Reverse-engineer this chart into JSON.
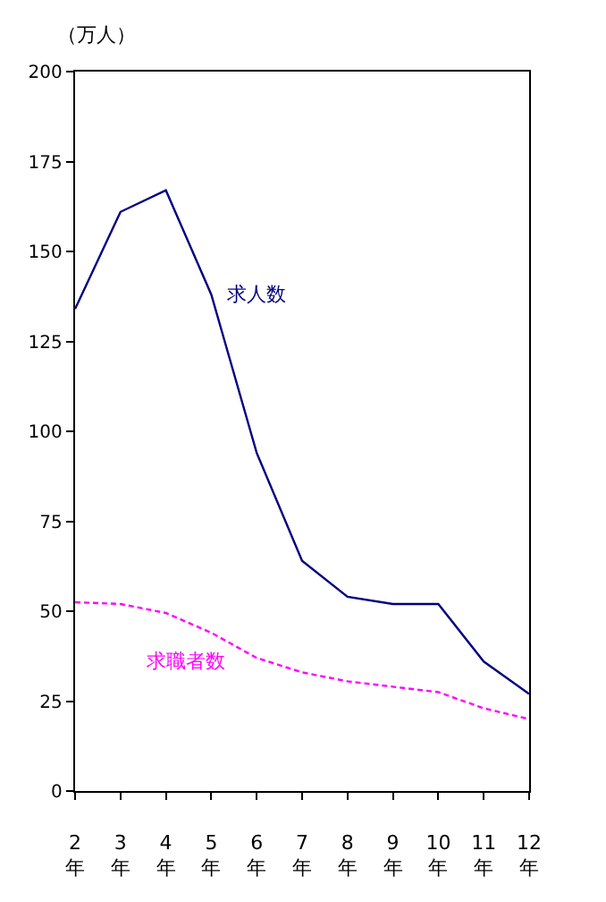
{
  "chart_data": {
    "type": "line",
    "ylabel": "（万人）",
    "categories": [
      "2\n年",
      "3\n年",
      "4\n年",
      "5\n年",
      "6\n年",
      "7\n年",
      "8\n年",
      "9\n年",
      "10\n年",
      "11\n年",
      "12\n年"
    ],
    "series": [
      {
        "name": "求人数",
        "color": "#000080",
        "line_style": "solid",
        "values": [
          134,
          161,
          167,
          138,
          94,
          64,
          54,
          52,
          52,
          36,
          27
        ]
      },
      {
        "name": "求職者数",
        "color": "#ff00ff",
        "line_style": "dashed",
        "values": [
          52.5,
          52,
          49.5,
          44,
          37,
          33,
          30.5,
          29,
          27.5,
          23,
          20
        ]
      }
    ],
    "ylim": [
      0,
      200
    ],
    "yticks": [
      0,
      25,
      50,
      75,
      100,
      125,
      150,
      175,
      200
    ],
    "legend": false,
    "marker": "none"
  }
}
